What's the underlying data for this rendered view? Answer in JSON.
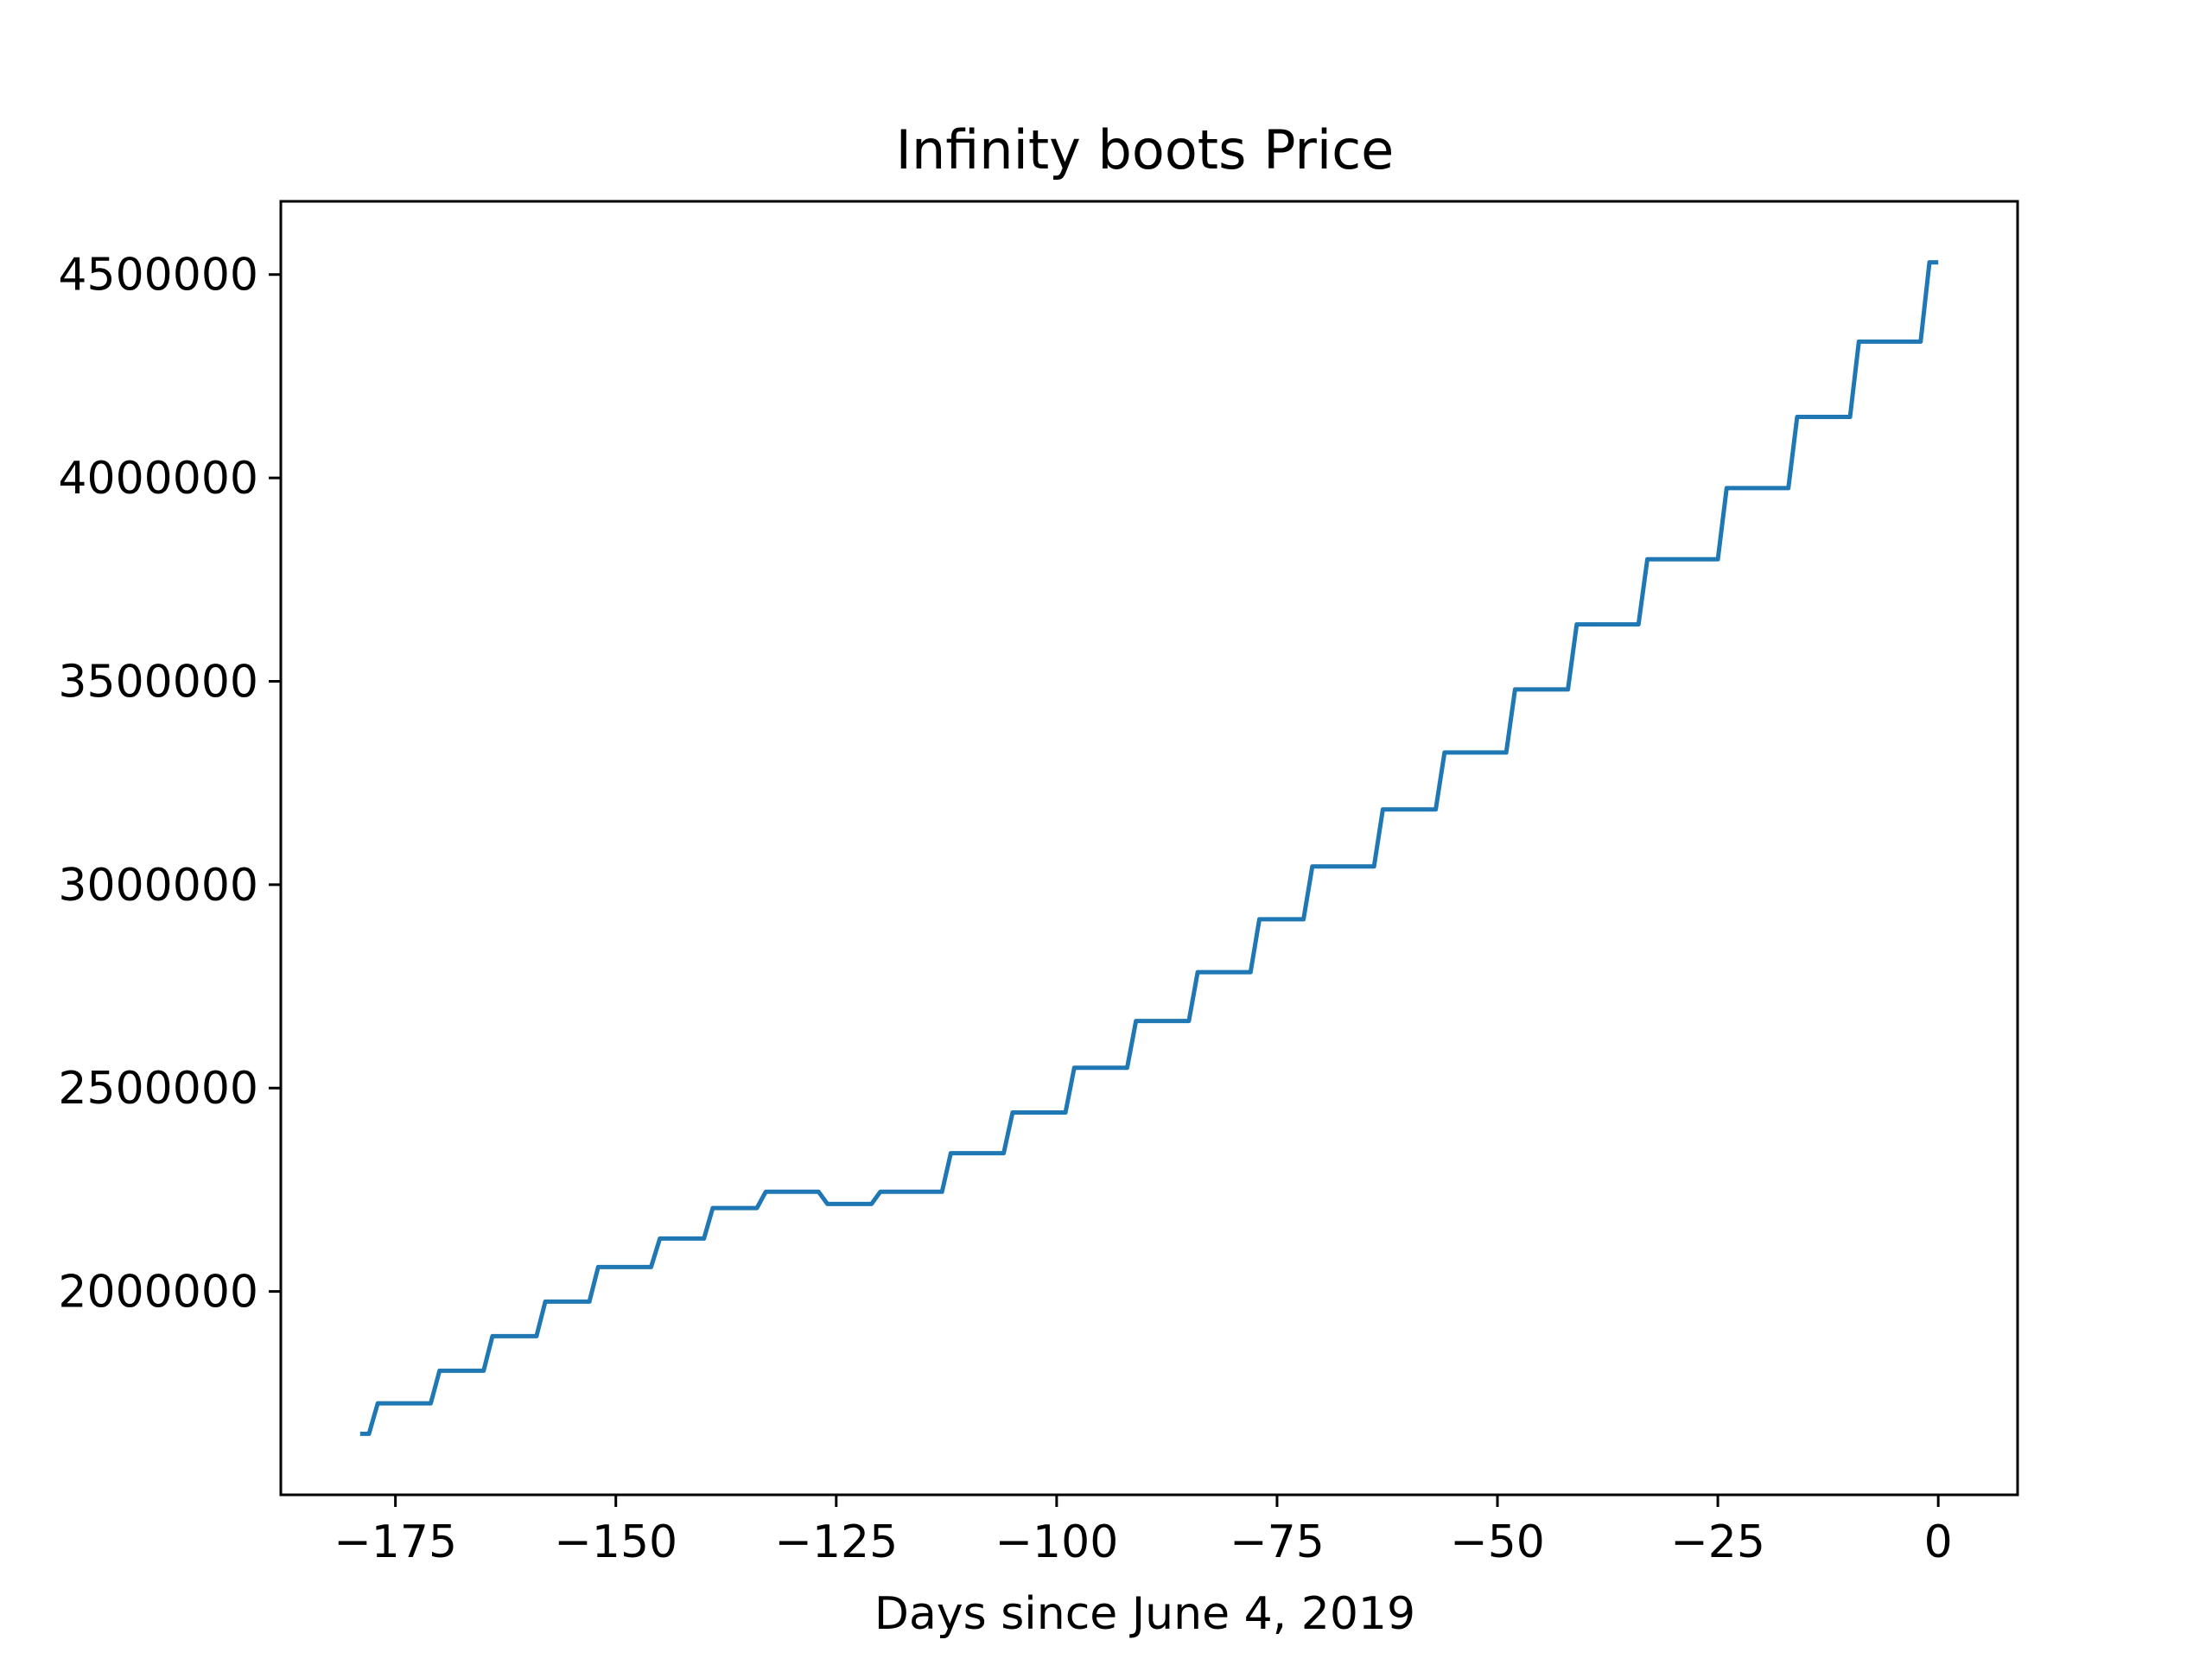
{
  "chart_data": {
    "type": "line",
    "title": "Infinity boots Price",
    "xlabel": "Days since June 4, 2019",
    "ylabel": "",
    "xlim": [
      -188,
      9
    ],
    "ylim": [
      1500000,
      4680000
    ],
    "x_ticks": [
      -175,
      -150,
      -125,
      -100,
      -75,
      -50,
      -25,
      0
    ],
    "x_tick_labels": [
      "−175",
      "−150",
      "−125",
      "−100",
      "−75",
      "−50",
      "−25",
      "0"
    ],
    "y_ticks": [
      2000000,
      2500000,
      3000000,
      3500000,
      4000000,
      4500000
    ],
    "y_tick_labels": [
      "2000000",
      "2500000",
      "3000000",
      "3500000",
      "4000000",
      "4500000"
    ],
    "grid": false,
    "legend": "none",
    "series": [
      {
        "color": "#1f77b4",
        "x": [
          -179,
          -178,
          -177,
          -171,
          -170,
          -165,
          -164,
          -159,
          -158,
          -153,
          -152,
          -146,
          -145,
          -140,
          -139,
          -134,
          -133,
          -127,
          -126,
          -121,
          -120,
          -113,
          -112,
          -106,
          -105,
          -99,
          -98,
          -92,
          -91,
          -85,
          -84,
          -78,
          -77,
          -72,
          -71,
          -64,
          -63,
          -57,
          -56,
          -49,
          -48,
          -42,
          -41,
          -34,
          -33,
          -25,
          -24,
          -17,
          -16,
          -10,
          -9,
          -2,
          -1,
          0
        ],
        "y": [
          1650000,
          1650000,
          1725000,
          1725000,
          1805000,
          1805000,
          1890000,
          1890000,
          1975000,
          1975000,
          2060000,
          2060000,
          2130000,
          2130000,
          2205000,
          2205000,
          2245000,
          2245000,
          2215000,
          2215000,
          2245000,
          2245000,
          2340000,
          2340000,
          2440000,
          2440000,
          2550000,
          2550000,
          2665000,
          2665000,
          2785000,
          2785000,
          2915000,
          2915000,
          3045000,
          3045000,
          3185000,
          3185000,
          3325000,
          3325000,
          3480000,
          3480000,
          3640000,
          3640000,
          3800000,
          3800000,
          3975000,
          3975000,
          4150000,
          4150000,
          4335000,
          4335000,
          4530000,
          4530000
        ]
      }
    ]
  }
}
